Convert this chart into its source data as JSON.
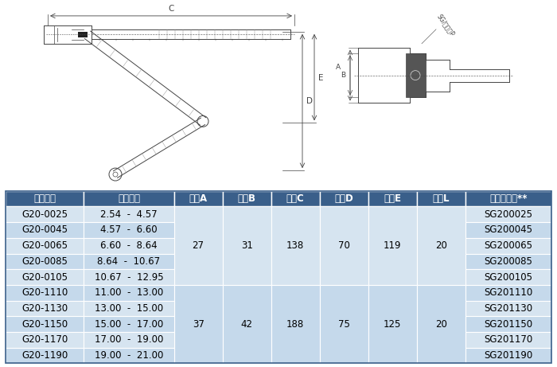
{
  "header": [
    "产品型号",
    "密封直径",
    "尺奴A",
    "尺奴B",
    "尺奴C",
    "尺奴D",
    "尺奴E",
    "尺奴L",
    "主密封圈包**"
  ],
  "rows": [
    [
      "G20-0025",
      "2.54  -  4.57",
      "27",
      "31",
      "138",
      "70",
      "119",
      "20",
      "SG200025"
    ],
    [
      "G20-0045",
      "4.57  -  6.60",
      "",
      "",
      "",
      "",
      "",
      "",
      "SG200045"
    ],
    [
      "G20-0065",
      "6.60  -  8.64",
      "",
      "",
      "",
      "",
      "",
      "",
      "SG200065"
    ],
    [
      "G20-0085",
      "8.64  -  10.67",
      "",
      "",
      "",
      "",
      "",
      "",
      "SG200085"
    ],
    [
      "G20-0105",
      "10.67  -  12.95",
      "",
      "",
      "",
      "",
      "",
      "",
      "SG200105"
    ],
    [
      "G20-1110",
      "11.00  -  13.00",
      "37",
      "42",
      "188",
      "75",
      "125",
      "20",
      "SG201110"
    ],
    [
      "G20-1130",
      "13.00  -  15.00",
      "",
      "",
      "",
      "",
      "",
      "",
      "SG201130"
    ],
    [
      "G20-1150",
      "15.00  -  17.00",
      "",
      "",
      "",
      "",
      "",
      "",
      "SG201150"
    ],
    [
      "G20-1170",
      "17.00  -  19.00",
      "",
      "",
      "",
      "",
      "",
      "",
      "SG201170"
    ],
    [
      "G20-1190",
      "19.00  -  21.00",
      "",
      "",
      "",
      "",
      "",
      "",
      "SG201190"
    ]
  ],
  "group1_vals": [
    "27",
    "31",
    "138",
    "70",
    "119",
    "20"
  ],
  "group2_vals": [
    "37",
    "42",
    "188",
    "75",
    "125",
    "20"
  ],
  "header_bg": "#3a5f8a",
  "header_text": "#ffffff",
  "row_bg1": "#d6e4f0",
  "row_bg2": "#c5d9eb",
  "border_color": "#ffffff",
  "font_size": 8.5,
  "header_font_size": 8.5,
  "col_widths": [
    1.0,
    1.15,
    0.62,
    0.62,
    0.62,
    0.62,
    0.62,
    0.62,
    1.1
  ]
}
